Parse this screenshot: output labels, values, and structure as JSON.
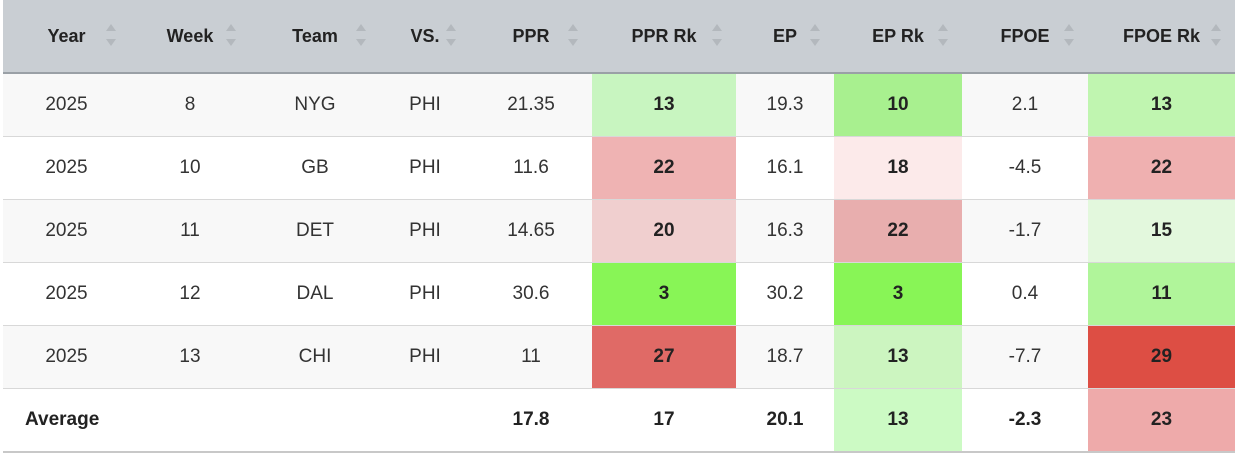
{
  "table": {
    "header": [
      "Year",
      "Week",
      "Team",
      "VS.",
      "PPR",
      "PPR Rk",
      "EP",
      "EP Rk",
      "FPOE",
      "FPOE Rk"
    ],
    "rows": [
      [
        "2025",
        "8",
        "NYG",
        "PHI",
        "21.35",
        "13",
        "19.3",
        "10",
        "2.1",
        "13"
      ],
      [
        "2025",
        "10",
        "GB",
        "PHI",
        "11.6",
        "22",
        "16.1",
        "18",
        "-4.5",
        "22"
      ],
      [
        "2025",
        "11",
        "DET",
        "PHI",
        "14.65",
        "20",
        "16.3",
        "22",
        "-1.7",
        "15"
      ],
      [
        "2025",
        "12",
        "DAL",
        "PHI",
        "30.6",
        "3",
        "30.2",
        "3",
        "0.4",
        "11"
      ],
      [
        "2025",
        "13",
        "CHI",
        "PHI",
        "11",
        "27",
        "18.7",
        "13",
        "-7.7",
        "29"
      ]
    ],
    "footer": [
      "Average",
      null,
      null,
      null,
      "17.8",
      "17",
      "20.1",
      "13",
      "-2.3",
      "23"
    ]
  }
}
